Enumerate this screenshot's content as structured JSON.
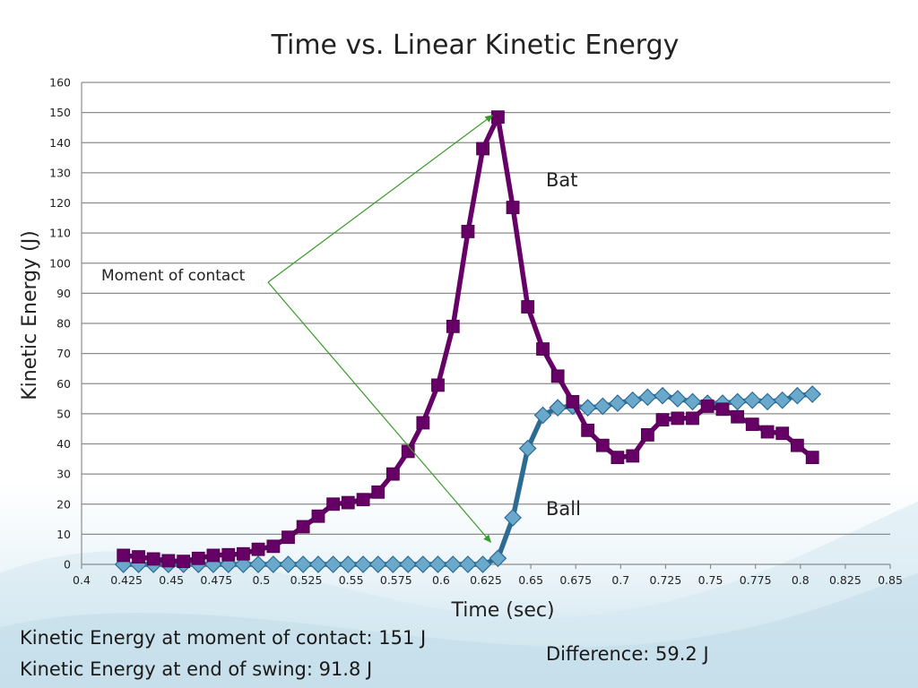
{
  "chart_data": {
    "type": "line",
    "title": "Time vs. Linear Kinetic Energy",
    "xlabel": "Time (sec)",
    "ylabel": "Kinetic Energy (J)",
    "xlim": [
      0.4,
      0.85
    ],
    "ylim": [
      0,
      160
    ],
    "x_ticks": [
      "0.4",
      "0.425",
      "0.45",
      "0.475",
      "0.5",
      "0.525",
      "0.55",
      "0.575",
      "0.6",
      "0.625",
      "0.65",
      "0.675",
      "0.7",
      "0.725",
      "0.75",
      "0.775",
      "0.8",
      "0.825",
      "0.85"
    ],
    "y_ticks": [
      "0",
      "10",
      "20",
      "30",
      "40",
      "50",
      "60",
      "70",
      "80",
      "90",
      "100",
      "110",
      "120",
      "130",
      "140",
      "150",
      "160"
    ],
    "grid": "horizontal",
    "series": [
      {
        "name": "Bat",
        "color": "#660066",
        "marker": "square",
        "x": [
          0.4233,
          0.4317,
          0.44,
          0.4483,
          0.4567,
          0.465,
          0.4733,
          0.4817,
          0.49,
          0.4983,
          0.5067,
          0.515,
          0.5233,
          0.5317,
          0.54,
          0.5483,
          0.5567,
          0.565,
          0.5733,
          0.5817,
          0.59,
          0.5983,
          0.6067,
          0.615,
          0.6233,
          0.6317,
          0.64,
          0.6483,
          0.6567,
          0.665,
          0.6733,
          0.6817,
          0.69,
          0.6983,
          0.7067,
          0.715,
          0.7233,
          0.7317,
          0.74,
          0.7483,
          0.7567,
          0.765,
          0.7733,
          0.7817,
          0.79,
          0.7983,
          0.8067
        ],
        "y": [
          3,
          2.5,
          1.8,
          1.2,
          1,
          2,
          3,
          3.2,
          3.5,
          5,
          6,
          9,
          12.5,
          16,
          20,
          20.5,
          21.5,
          24,
          30,
          37.5,
          47,
          59.5,
          79,
          110.5,
          138,
          148.5,
          118.5,
          85.5,
          71.5,
          62.5,
          54,
          44.5,
          39.5,
          35.5,
          36,
          43,
          48,
          48.5,
          48.5,
          52.5,
          51.5,
          49,
          46.5,
          44,
          43.5,
          39.5,
          35.5
        ]
      },
      {
        "name": "Ball",
        "color": "#2c6c93",
        "marker": "diamond",
        "x": [
          0.4233,
          0.4317,
          0.44,
          0.4483,
          0.4567,
          0.465,
          0.4733,
          0.4817,
          0.49,
          0.4983,
          0.5067,
          0.515,
          0.5233,
          0.5317,
          0.54,
          0.5483,
          0.5567,
          0.565,
          0.5733,
          0.5817,
          0.59,
          0.5983,
          0.6067,
          0.615,
          0.6233,
          0.6317,
          0.64,
          0.6483,
          0.6567,
          0.665,
          0.6733,
          0.6817,
          0.69,
          0.6983,
          0.7067,
          0.715,
          0.7233,
          0.7317,
          0.74,
          0.7483,
          0.7567,
          0.765,
          0.7733,
          0.7817,
          0.79,
          0.7983,
          0.8067
        ],
        "y": [
          0,
          0,
          0,
          0,
          0,
          0,
          0,
          0,
          0,
          0,
          0,
          0,
          0,
          0,
          0,
          0,
          0,
          0,
          0,
          0,
          0,
          0,
          0,
          0,
          0,
          2,
          15.5,
          38.5,
          49.5,
          52,
          52.5,
          52,
          52.5,
          53.5,
          54.5,
          55.5,
          56,
          55,
          54,
          53.5,
          53.5,
          54,
          54.5,
          54,
          54.5,
          56,
          56.5
        ]
      }
    ],
    "annotations": {
      "moment_of_contact": "Moment of contact",
      "bat_label": "Bat",
      "ball_label": "Ball"
    }
  },
  "footer": {
    "ke_contact": "Kinetic Energy at moment of contact: 151 J",
    "ke_end": "Kinetic Energy at end of swing: 91.8 J",
    "difference": "Difference: 59.2 J"
  },
  "colors": {
    "arrow": "#3a9a2a",
    "grid": "#8c8c8c"
  }
}
